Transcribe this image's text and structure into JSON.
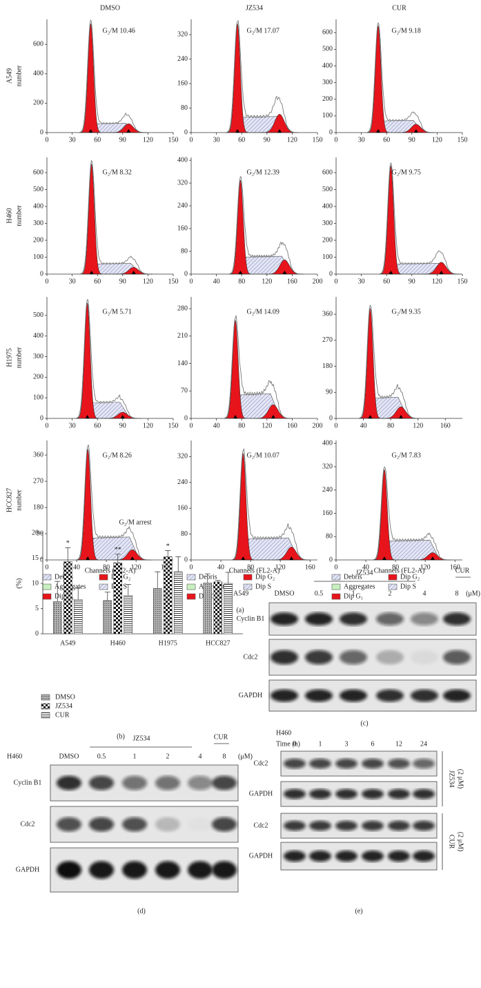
{
  "panel_a": {
    "columns": [
      "DMSO",
      "JZ534",
      "CUR"
    ],
    "rows": [
      {
        "cell": "A549",
        "axis": "number"
      },
      {
        "cell": "H460",
        "axis": "number"
      },
      {
        "cell": "H1975",
        "axis": "number"
      },
      {
        "cell": "HCC827",
        "axis": "number"
      }
    ],
    "plots": [
      [
        {
          "label": "G₂/M 10.46",
          "xlim": [
            0,
            150
          ],
          "xticks": [
            0,
            30,
            60,
            90,
            120,
            150
          ],
          "ylim": [
            0,
            770
          ],
          "yticks": [
            0,
            200,
            400,
            600
          ],
          "g1": [
            52,
            740
          ],
          "g2": [
            97,
            60
          ],
          "s_level": 60
        },
        {
          "label": "G₂/M 17.07",
          "xlim": [
            0,
            150
          ],
          "xticks": [
            0,
            30,
            60,
            90,
            120,
            150
          ],
          "ylim": [
            0,
            370
          ],
          "yticks": [
            0,
            80,
            160,
            240,
            320
          ],
          "g1": [
            55,
            355
          ],
          "g2": [
            105,
            60
          ],
          "s_level": 50
        },
        {
          "label": "G₂/M 9.18",
          "xlim": [
            0,
            150
          ],
          "xticks": [
            0,
            30,
            60,
            90,
            120,
            150
          ],
          "ylim": [
            0,
            680
          ],
          "yticks": [
            0,
            100,
            200,
            300,
            400,
            500,
            600
          ],
          "g1": [
            50,
            640
          ],
          "g2": [
            95,
            50
          ],
          "s_level": 70
        }
      ],
      [
        {
          "label": "G₂/M 8.32",
          "xlim": [
            0,
            150
          ],
          "xticks": [
            0,
            30,
            60,
            90,
            120,
            150
          ],
          "ylim": [
            0,
            690
          ],
          "yticks": [
            0,
            100,
            200,
            300,
            400,
            500,
            600
          ],
          "g1": [
            53,
            650
          ],
          "g2": [
            103,
            40
          ],
          "s_level": 60
        },
        {
          "label": "G₂/M 12.39",
          "xlim": [
            0,
            200
          ],
          "xticks": [
            0,
            40,
            80,
            120,
            160,
            200
          ],
          "ylim": [
            0,
            410
          ],
          "yticks": [
            0,
            80,
            160,
            240,
            320,
            400
          ],
          "g1": [
            78,
            330
          ],
          "g2": [
            148,
            50
          ],
          "s_level": 60
        },
        {
          "label": "G₂/M 9.75",
          "xlim": [
            0,
            150
          ],
          "xticks": [
            0,
            30,
            60,
            90,
            120,
            150
          ],
          "ylim": [
            0,
            690
          ],
          "yticks": [
            0,
            100,
            200,
            300,
            400,
            500,
            600
          ],
          "g1": [
            65,
            640
          ],
          "g2": [
            125,
            70
          ],
          "s_level": 60
        }
      ],
      [
        {
          "label": "G₂/M 5.71",
          "xlim": [
            0,
            150
          ],
          "xticks": [
            0,
            30,
            60,
            90,
            120,
            150
          ],
          "ylim": [
            0,
            590
          ],
          "yticks": [
            0,
            100,
            200,
            300,
            400,
            500
          ],
          "g1": [
            48,
            560
          ],
          "g2": [
            90,
            30
          ],
          "s_level": 75
        },
        {
          "label": "G₂/M 14.09",
          "xlim": [
            0,
            200
          ],
          "xticks": [
            0,
            40,
            80,
            120,
            160,
            200
          ],
          "ylim": [
            0,
            310
          ],
          "yticks": [
            0,
            70,
            140,
            210,
            280
          ],
          "g1": [
            70,
            250
          ],
          "g2": [
            130,
            35
          ],
          "s_level": 60
        },
        {
          "label": "G₂/M 9.35",
          "xlim": [
            0,
            185
          ],
          "xticks": [
            0,
            40,
            80,
            120,
            160
          ],
          "ylim": [
            0,
            420
          ],
          "yticks": [
            0,
            90,
            180,
            270,
            360
          ],
          "g1": [
            50,
            380
          ],
          "g2": [
            95,
            40
          ],
          "s_level": 70
        }
      ],
      [
        {
          "label": "G₂/M 8.26",
          "xlim": [
            0,
            170
          ],
          "xticks": [
            0,
            40,
            80,
            120,
            160
          ],
          "ylim": [
            0,
            410
          ],
          "yticks": [
            0,
            90,
            180,
            270,
            360
          ],
          "g1": [
            55,
            380
          ],
          "g2": [
            115,
            35
          ],
          "s_level": 75
        },
        {
          "label": "G₂/M 10.07",
          "xlim": [
            0,
            170
          ],
          "xticks": [
            0,
            40,
            80,
            120,
            160
          ],
          "ylim": [
            0,
            370
          ],
          "yticks": [
            0,
            80,
            160,
            240,
            320
          ],
          "g1": [
            70,
            330
          ],
          "g2": [
            135,
            40
          ],
          "s_level": 65
        },
        {
          "label": "G₂/M 7.83",
          "xlim": [
            0,
            170
          ],
          "xticks": [
            0,
            40,
            80,
            120,
            160
          ],
          "ylim": [
            0,
            410
          ],
          "yticks": [
            0,
            80,
            160,
            240,
            320,
            400
          ],
          "g1": [
            65,
            310
          ],
          "g2": [
            130,
            25
          ],
          "s_level": 65
        }
      ]
    ],
    "x_label": "Channels (FL2-A)",
    "legend": [
      "Debris",
      "Aggregates",
      "Dip G₁",
      "Dip G₂",
      "Dip S"
    ],
    "caption": "(a)"
  },
  "chart_data": {
    "type": "bar",
    "title": "G₂/M arrest",
    "y_label": "(%)",
    "categories": [
      "A549",
      "H460",
      "H1975",
      "HCC827"
    ],
    "series": [
      {
        "name": "DMSO",
        "values": [
          6.4,
          6.6,
          9.0,
          10.1
        ],
        "errors": [
          4.0,
          1.7,
          3.3,
          1.8
        ]
      },
      {
        "name": "JZ534",
        "values": [
          14.3,
          14.1,
          15.3,
          10.3
        ],
        "errors": [
          2.8,
          1.7,
          1.2,
          0.3
        ],
        "significance": [
          "*",
          "**",
          "*",
          null
        ]
      },
      {
        "name": "CUR",
        "values": [
          6.8,
          7.6,
          12.3,
          10.0
        ],
        "errors": [
          2.3,
          2.2,
          3.0,
          2.2
        ]
      }
    ],
    "ylim": [
      0,
      20
    ],
    "yticks": [
      0,
      5,
      10,
      15,
      20
    ],
    "caption": "(b)"
  },
  "panel_c": {
    "cell_line": "A549",
    "lanes": [
      "DMSO",
      "0.5",
      "1",
      "2",
      "4",
      "8"
    ],
    "groups": [
      "JZ534",
      "CUR"
    ],
    "unit": "(μM)",
    "rows": [
      {
        "label": "Cyclin B1",
        "intensity": [
          0.9,
          0.9,
          0.85,
          0.6,
          0.45,
          0.85
        ]
      },
      {
        "label": "Cdc2",
        "intensity": [
          0.85,
          0.8,
          0.6,
          0.25,
          0.05,
          0.65
        ]
      },
      {
        "label": "GAPDH",
        "intensity": [
          0.9,
          0.9,
          0.9,
          0.85,
          0.85,
          0.9
        ]
      }
    ],
    "caption": "(c)"
  },
  "panel_d": {
    "cell_line": "H460",
    "lanes": [
      "DMSO",
      "0.5",
      "1",
      "2",
      "4",
      "8"
    ],
    "groups": [
      "JZ534",
      "CUR"
    ],
    "unit": "(μM)",
    "rows": [
      {
        "label": "Cyclin B1",
        "intensity": [
          0.85,
          0.75,
          0.55,
          0.55,
          0.45,
          0.75
        ]
      },
      {
        "label": "Cdc2",
        "intensity": [
          0.7,
          0.75,
          0.7,
          0.2,
          0.02,
          0.75
        ]
      },
      {
        "label": "GAPDH",
        "intensity": [
          1,
          0.95,
          0.95,
          0.95,
          0.95,
          0.95
        ]
      }
    ],
    "caption": "(d)"
  },
  "panel_e": {
    "cell_line": "H460",
    "time_label": "Time (h)",
    "lanes": [
      "0",
      "1",
      "3",
      "6",
      "12",
      "24"
    ],
    "rows": [
      {
        "label": "Cdc2",
        "intensity": [
          0.75,
          0.75,
          0.75,
          0.75,
          0.7,
          0.6
        ]
      },
      {
        "label": "GAPDH",
        "intensity": [
          0.85,
          0.85,
          0.85,
          0.85,
          0.85,
          0.85
        ]
      },
      {
        "label": "Cdc2",
        "intensity": [
          0.8,
          0.8,
          0.8,
          0.8,
          0.8,
          0.8
        ]
      },
      {
        "label": "GAPDH",
        "intensity": [
          0.9,
          0.9,
          0.9,
          0.9,
          0.9,
          0.9
        ]
      }
    ],
    "treatments": [
      {
        "name": "JZ534",
        "dose": "(2 μM)"
      },
      {
        "name": "CUR",
        "dose": "(2 μM)"
      }
    ],
    "caption": "(e)"
  }
}
